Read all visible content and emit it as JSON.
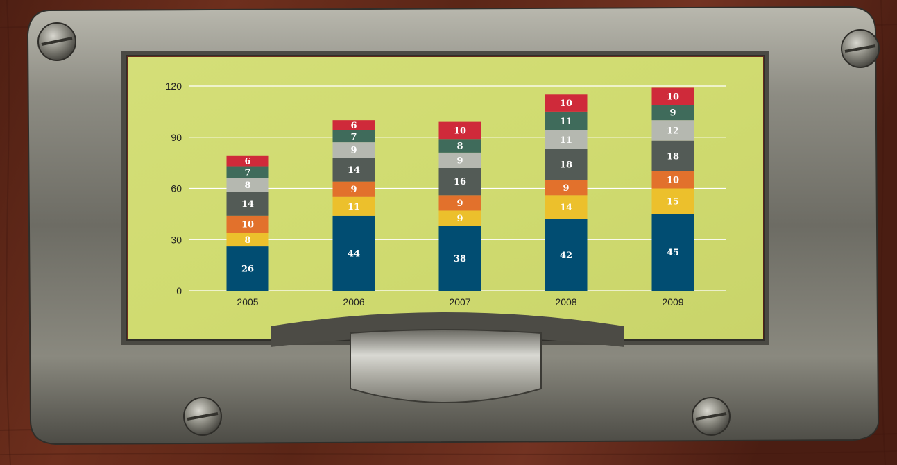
{
  "chart_data": {
    "type": "bar",
    "stacked": true,
    "categories": [
      "2005",
      "2006",
      "2007",
      "2008",
      "2009"
    ],
    "series": [
      {
        "color": "#014d72",
        "values": [
          26,
          44,
          38,
          42,
          45
        ]
      },
      {
        "color": "#ecc02c",
        "values": [
          8,
          11,
          9,
          14,
          15
        ]
      },
      {
        "color": "#e2712c",
        "values": [
          10,
          9,
          9,
          9,
          10
        ]
      },
      {
        "color": "#535b56",
        "values": [
          14,
          14,
          16,
          18,
          18
        ]
      },
      {
        "color": "#b5b8b0",
        "values": [
          8,
          9,
          9,
          11,
          12
        ]
      },
      {
        "color": "#3f6b5b",
        "values": [
          7,
          7,
          8,
          11,
          9
        ]
      },
      {
        "color": "#cf2a3a",
        "values": [
          6,
          6,
          10,
          10,
          10
        ]
      }
    ],
    "yticks": [
      "0",
      "30",
      "60",
      "90",
      "120"
    ],
    "ylim": [
      0,
      120
    ],
    "grid": true,
    "legend": "none",
    "title": "",
    "xlabel": "",
    "ylabel": ""
  },
  "colors": {
    "card": "#d2dd74",
    "grid": "#ffffff",
    "frame": "#8a8a82",
    "wood": "#6b2d1c"
  }
}
